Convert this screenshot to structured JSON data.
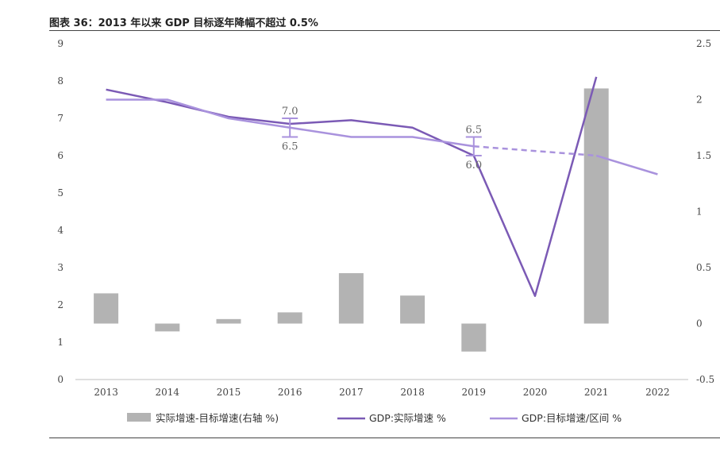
{
  "title": "图表 36：2013 年以来 GDP 目标逐年降幅不超过 0.5%",
  "chart_data": {
    "type": "bar+line",
    "x": [
      "2013",
      "2014",
      "2015",
      "2016",
      "2017",
      "2018",
      "2019",
      "2020",
      "2021",
      "2022"
    ],
    "left_axis": {
      "min": 0,
      "max": 9,
      "ticks": [
        "0",
        "1",
        "2",
        "3",
        "4",
        "5",
        "6",
        "7",
        "8",
        "9"
      ]
    },
    "right_axis": {
      "min": -0.5,
      "max": 2.5,
      "ticks": [
        "-0.5",
        "0",
        "0.5",
        "1",
        "1.5",
        "2",
        "2.5"
      ]
    },
    "series": [
      {
        "name": "实际增速-目标增速(右轴  %)",
        "type": "bar",
        "axis": "right",
        "color": "#b3b3b3",
        "values": [
          0.27,
          -0.07,
          0.04,
          0.1,
          0.45,
          0.25,
          -0.25,
          null,
          2.1,
          null
        ]
      },
      {
        "name": "GDP:实际增速  %",
        "type": "line",
        "axis": "left",
        "color": "#7b5ab5",
        "values": [
          7.77,
          7.43,
          7.04,
          6.85,
          6.95,
          6.75,
          6.0,
          2.24,
          8.11,
          null
        ]
      },
      {
        "name": "GDP:目标增速/区间  %",
        "type": "line",
        "axis": "left",
        "color": "#a992dd",
        "values": [
          7.5,
          7.5,
          7.0,
          6.75,
          6.5,
          6.5,
          6.25,
          null,
          6.0,
          5.5
        ],
        "dashed_between": [
          "2019",
          "2021"
        ]
      }
    ],
    "range_markers": [
      {
        "x": "2016",
        "high": 7.0,
        "low": 6.5,
        "high_label": "7.0",
        "low_label": "6.5"
      },
      {
        "x": "2019",
        "high": 6.5,
        "low": 6.0,
        "high_label": "6.5",
        "low_label": "6.0"
      }
    ]
  },
  "colors": {
    "bar": "#b3b3b3",
    "actual": "#7b5ab5",
    "target": "#a992dd",
    "axis": "#bfbfbf"
  }
}
